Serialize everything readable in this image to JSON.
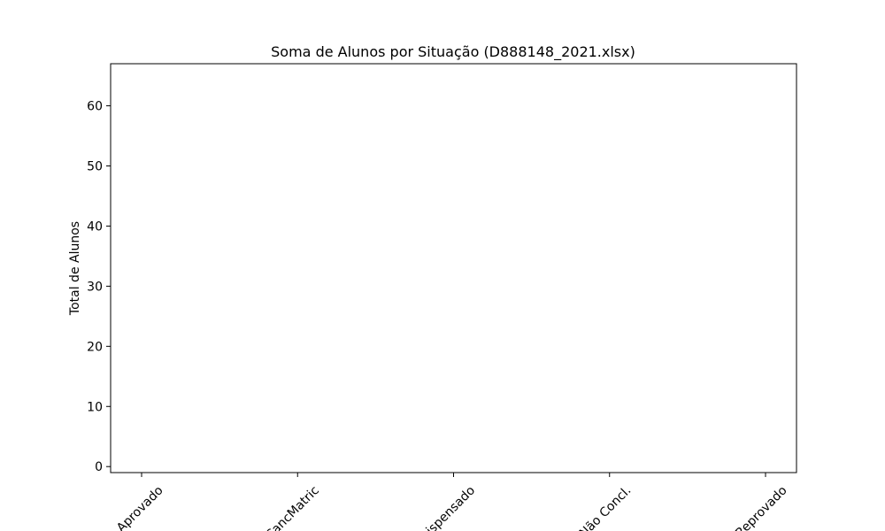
{
  "chart_data": {
    "type": "bar",
    "title": "Soma de Alunos por Situação (D888148_2021.xlsx)",
    "xlabel": "",
    "ylabel": "Total de Alunos",
    "categories": [
      "Aprovado",
      "CancMatric",
      "Dispensado",
      "Não Concl.",
      "Reprovado"
    ],
    "values": [
      0,
      0,
      0,
      0,
      0
    ],
    "ylim": [
      -1,
      67
    ],
    "yticks": [
      0,
      10,
      20,
      30,
      40,
      50,
      60
    ],
    "grid": false,
    "legend": "none",
    "colors": {
      "bar": "#1f77b4",
      "axis": "#000000",
      "background": "#ffffff"
    }
  }
}
